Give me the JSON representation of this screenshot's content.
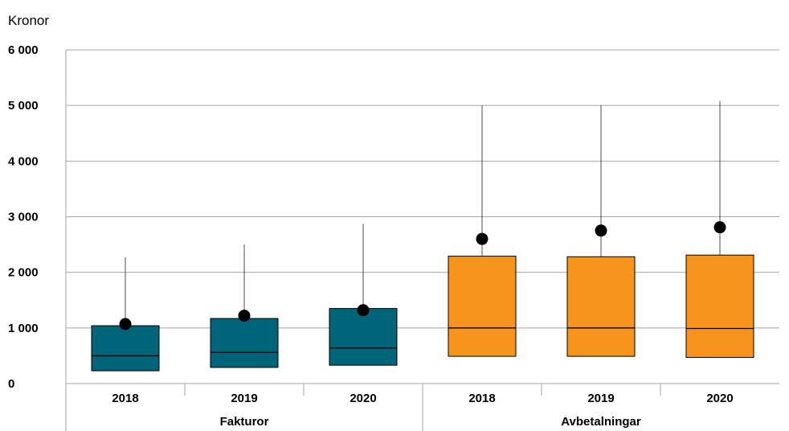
{
  "chart_data": {
    "type": "boxplot",
    "ylabel": "Kronor",
    "ylim": [
      0,
      6000
    ],
    "yticks": [
      0,
      1000,
      2000,
      3000,
      4000,
      5000,
      6000
    ],
    "ytick_labels": [
      "0",
      "1 000",
      "2 000",
      "3 000",
      "4 000",
      "5 000",
      "6 000"
    ],
    "grid": true,
    "groups": [
      {
        "name": "Fakturor",
        "color": "#006579",
        "boxes": [
          {
            "label": "2018",
            "whisker_low": 230,
            "q1": 230,
            "median": 500,
            "q3": 1040,
            "whisker_high": 2270,
            "mean": 1070
          },
          {
            "label": "2019",
            "whisker_low": 290,
            "q1": 290,
            "median": 560,
            "q3": 1170,
            "whisker_high": 2500,
            "mean": 1220
          },
          {
            "label": "2020",
            "whisker_low": 330,
            "q1": 330,
            "median": 640,
            "q3": 1350,
            "whisker_high": 2870,
            "mean": 1320
          }
        ]
      },
      {
        "name": "Avbetalningar",
        "color": "#F7941D",
        "boxes": [
          {
            "label": "2018",
            "whisker_low": 490,
            "q1": 490,
            "median": 1000,
            "q3": 2290,
            "whisker_high": 5000,
            "mean": 2600
          },
          {
            "label": "2019",
            "whisker_low": 490,
            "q1": 490,
            "median": 1000,
            "q3": 2280,
            "whisker_high": 5000,
            "mean": 2750
          },
          {
            "label": "2020",
            "whisker_low": 470,
            "q1": 470,
            "median": 990,
            "q3": 2310,
            "whisker_high": 5080,
            "mean": 2810
          }
        ]
      }
    ]
  }
}
